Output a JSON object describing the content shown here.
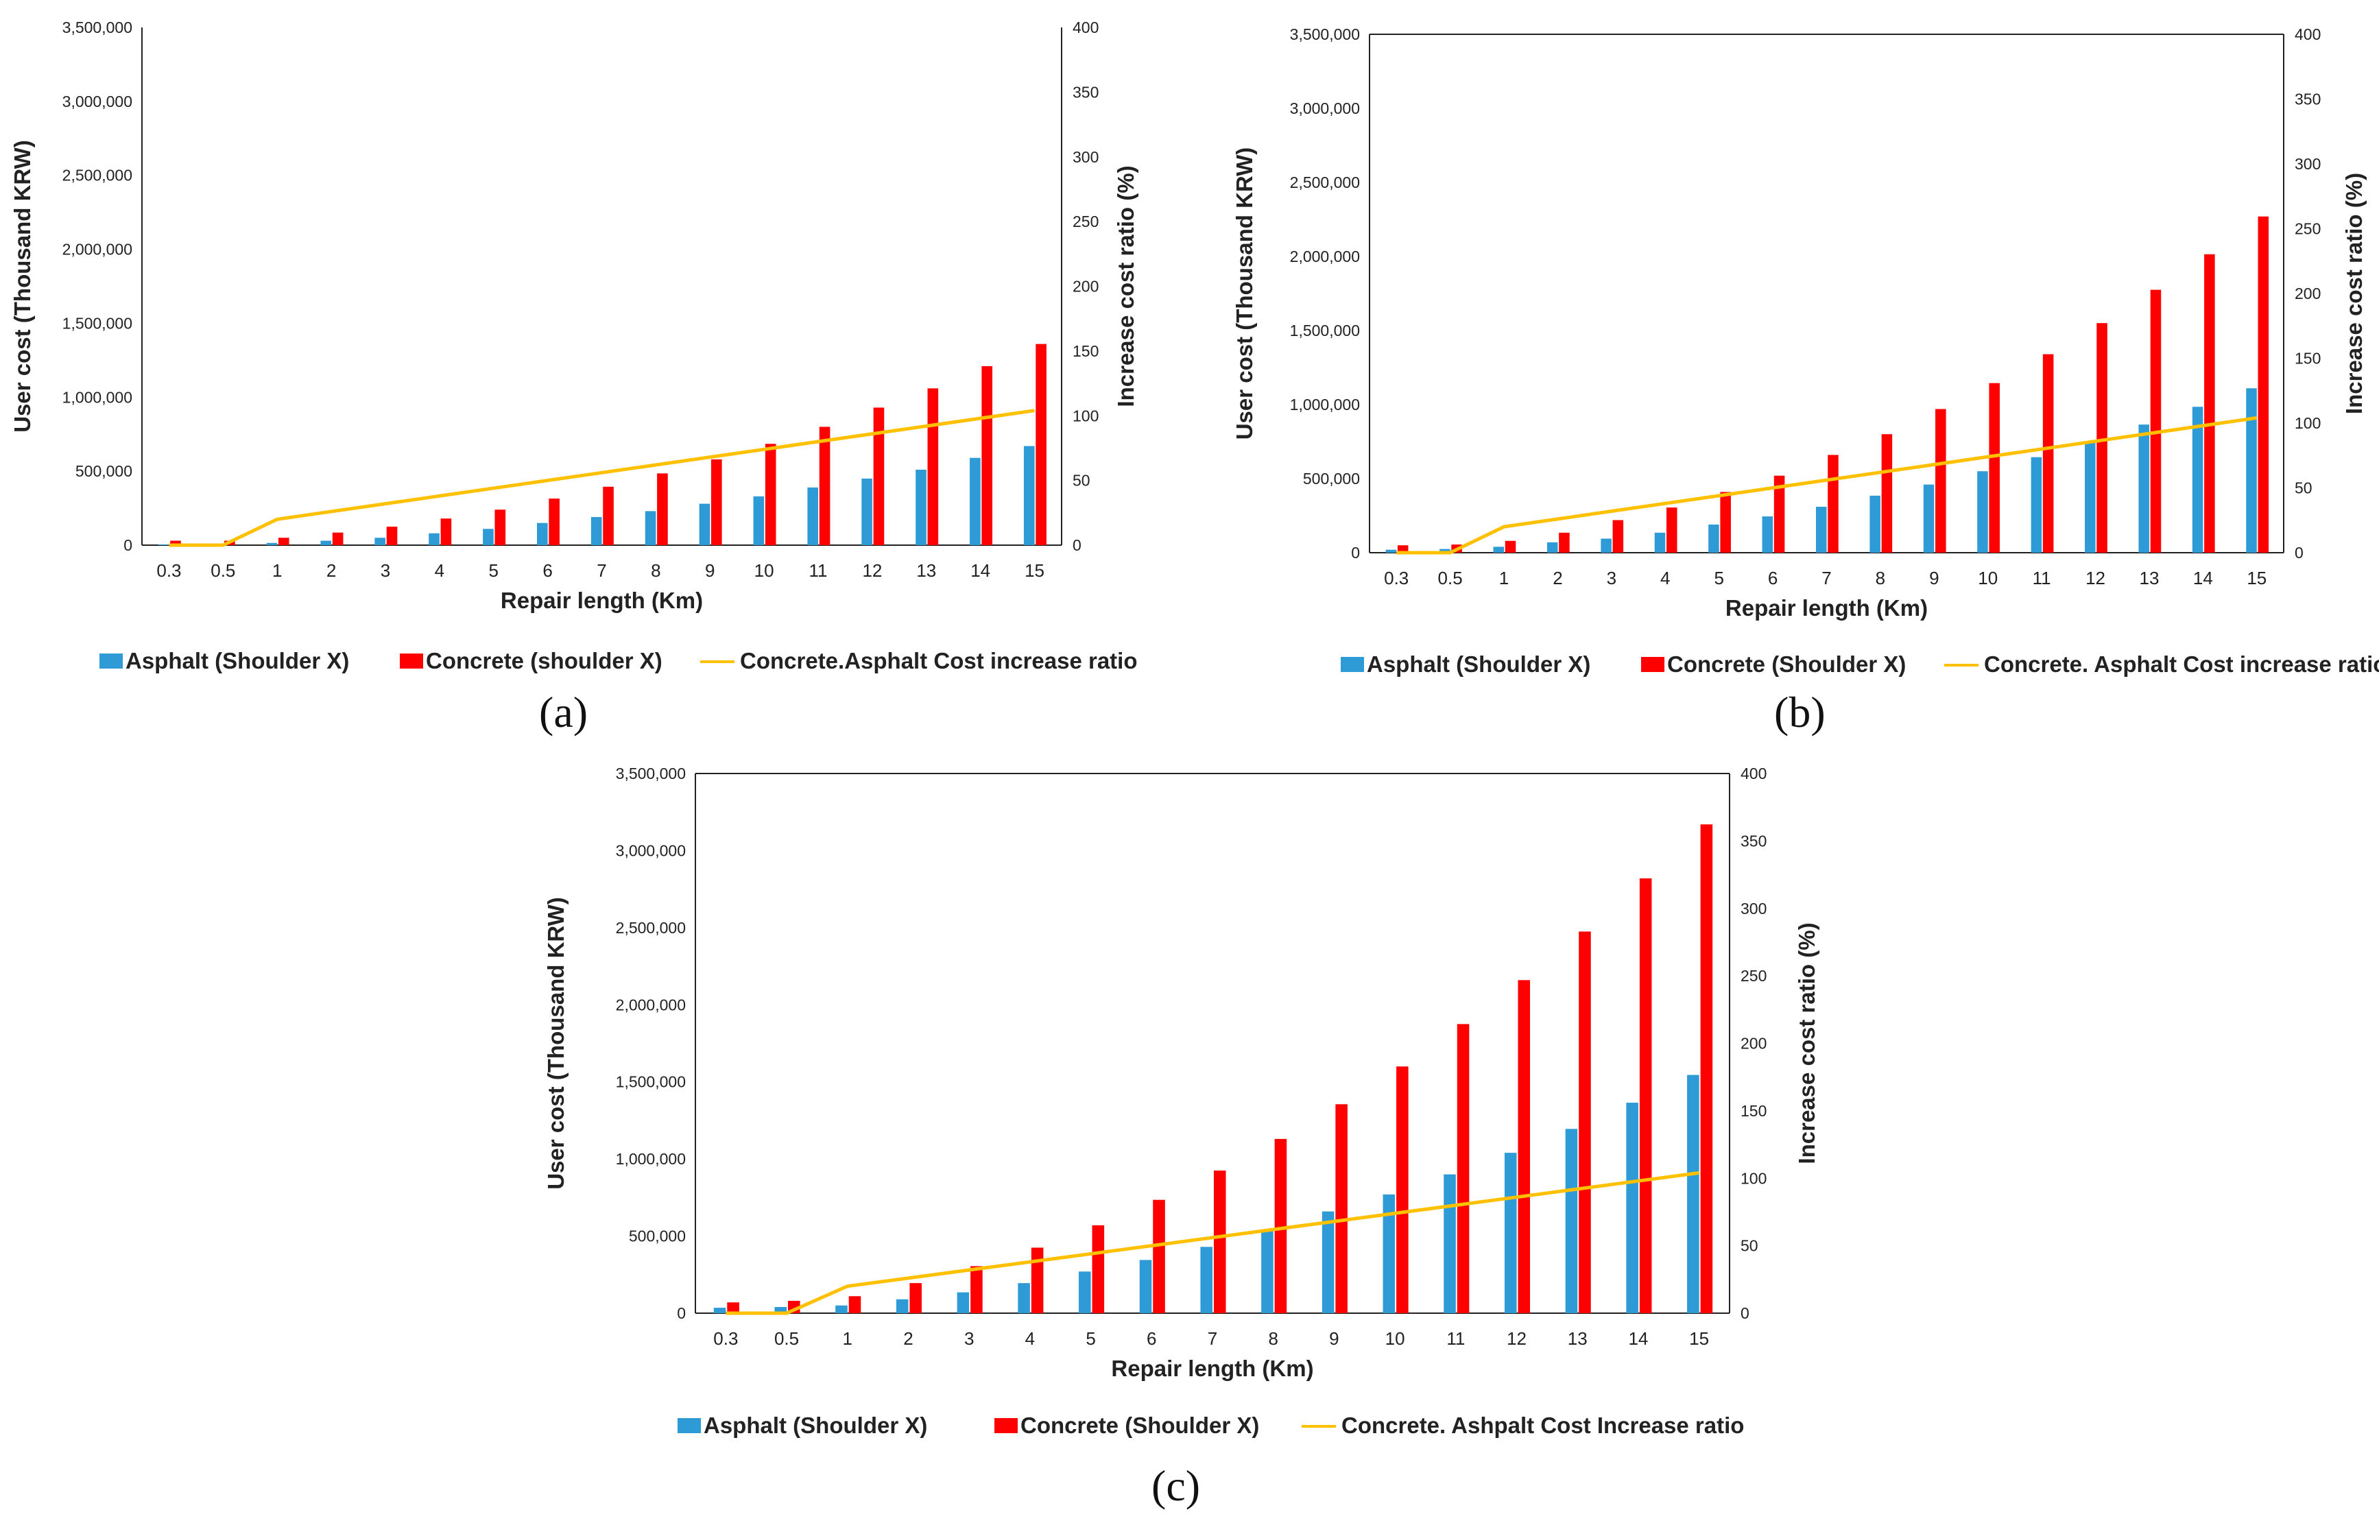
{
  "colors": {
    "asphalt": "#2E9BD6",
    "concrete": "#FF0000",
    "ratio_line": "#FFC000",
    "axis": "#222222"
  },
  "chart_data": [
    {
      "type": "bar",
      "panel_label": "(a)",
      "categories": [
        "0.3",
        "0.5",
        "1",
        "2",
        "3",
        "4",
        "5",
        "6",
        "7",
        "8",
        "9",
        "10",
        "11",
        "12",
        "13",
        "14",
        "15"
      ],
      "series": [
        {
          "name": "Asphalt (Shoulder X)",
          "kind": "bar",
          "axis": "left",
          "values": [
            5000,
            8000,
            15000,
            30000,
            50000,
            80000,
            110000,
            150000,
            190000,
            230000,
            280000,
            330000,
            390000,
            450000,
            510000,
            590000,
            670000
          ]
        },
        {
          "name": "Concrete (shoulder X)",
          "kind": "bar",
          "axis": "left",
          "values": [
            30000,
            30000,
            50000,
            85000,
            125000,
            180000,
            240000,
            315000,
            395000,
            485000,
            580000,
            685000,
            800000,
            930000,
            1060000,
            1210000,
            1360000
          ]
        },
        {
          "name": "Concrete.Asphalt Cost increase ratio",
          "kind": "line",
          "axis": "right",
          "values": [
            0,
            0,
            20,
            26,
            32,
            38,
            44,
            50,
            56,
            62,
            68,
            74,
            80,
            86,
            92,
            98,
            104
          ]
        }
      ],
      "xlabel": "Repair length (Km)",
      "ylabel": "User cost (Thousand KRW)",
      "y2label": "Increase cost ratio (%)",
      "ylim": [
        0,
        3500000
      ],
      "y2lim": [
        0,
        400
      ],
      "y_ticks": [
        "0",
        "500,000",
        "1,000,000",
        "1,500,000",
        "2,000,000",
        "2,500,000",
        "3,000,000",
        "3,500,000"
      ],
      "y2_ticks": [
        "0",
        "50",
        "100",
        "150",
        "200",
        "250",
        "300",
        "350",
        "400"
      ]
    },
    {
      "type": "bar",
      "panel_label": "(b)",
      "categories": [
        "0.3",
        "0.5",
        "1",
        "2",
        "3",
        "4",
        "5",
        "6",
        "7",
        "8",
        "9",
        "10",
        "11",
        "12",
        "13",
        "14",
        "15"
      ],
      "series": [
        {
          "name": "Asphalt (Shoulder X)",
          "kind": "bar",
          "axis": "left",
          "values": [
            20000,
            25000,
            40000,
            70000,
            95000,
            135000,
            190000,
            245000,
            310000,
            385000,
            460000,
            550000,
            645000,
            750000,
            865000,
            985000,
            1110000
          ]
        },
        {
          "name": "Concrete (Shoulder X)",
          "kind": "bar",
          "axis": "left",
          "values": [
            50000,
            55000,
            80000,
            135000,
            220000,
            305000,
            410000,
            520000,
            660000,
            800000,
            970000,
            1145000,
            1340000,
            1550000,
            1775000,
            2015000,
            2270000
          ]
        },
        {
          "name": "Concrete. Asphalt Cost increase ratio",
          "kind": "line",
          "axis": "right",
          "values": [
            0,
            0,
            20,
            26,
            32,
            38,
            44,
            50,
            56,
            62,
            68,
            74,
            80,
            86,
            92,
            98,
            104
          ]
        }
      ],
      "xlabel": "Repair length (Km)",
      "ylabel": "User cost (Thousand KRW)",
      "y2label": "Increase cost ratio (%)",
      "ylim": [
        0,
        3500000
      ],
      "y2lim": [
        0,
        400
      ],
      "y_ticks": [
        "0",
        "500,000",
        "1,000,000",
        "1,500,000",
        "2,000,000",
        "2,500,000",
        "3,000,000",
        "3,500,000"
      ],
      "y2_ticks": [
        "0",
        "50",
        "100",
        "150",
        "200",
        "250",
        "300",
        "350",
        "400"
      ]
    },
    {
      "type": "bar",
      "panel_label": "(c)",
      "categories": [
        "0.3",
        "0.5",
        "1",
        "2",
        "3",
        "4",
        "5",
        "6",
        "7",
        "8",
        "9",
        "10",
        "11",
        "12",
        "13",
        "14",
        "15"
      ],
      "series": [
        {
          "name": "Asphalt (Shoulder X)",
          "kind": "bar",
          "axis": "left",
          "values": [
            35000,
            40000,
            50000,
            90000,
            135000,
            195000,
            270000,
            345000,
            430000,
            540000,
            660000,
            770000,
            900000,
            1040000,
            1195000,
            1365000,
            1545000
          ]
        },
        {
          "name": "Concrete (Shoulder X)",
          "kind": "bar",
          "axis": "left",
          "values": [
            70000,
            80000,
            110000,
            195000,
            305000,
            425000,
            570000,
            735000,
            925000,
            1130000,
            1355000,
            1600000,
            1875000,
            2160000,
            2475000,
            2820000,
            3170000
          ]
        },
        {
          "name": "Concrete. Ashpalt Cost Increase ratio",
          "kind": "line",
          "axis": "right",
          "values": [
            0,
            0,
            20,
            26,
            32,
            38,
            44,
            50,
            56,
            62,
            68,
            74,
            80,
            86,
            92,
            98,
            104
          ]
        }
      ],
      "xlabel": "Repair length (Km)",
      "ylabel": "User cost (Thousand KRW)",
      "y2label": "Increase cost ratio (%)",
      "ylim": [
        0,
        3500000
      ],
      "y2lim": [
        0,
        400
      ],
      "y_ticks": [
        "0",
        "500,000",
        "1,000,000",
        "1,500,000",
        "2,000,000",
        "2,500,000",
        "3,000,000",
        "3,500,000"
      ],
      "y2_ticks": [
        "0",
        "50",
        "100",
        "150",
        "200",
        "250",
        "300",
        "350",
        "400"
      ]
    }
  ]
}
